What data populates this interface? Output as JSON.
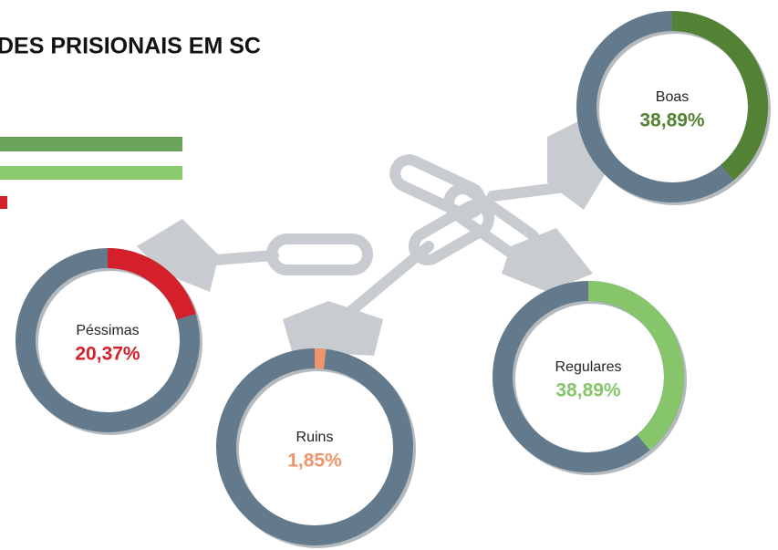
{
  "header": {
    "title": "DES PRISIONAIS EM SC"
  },
  "chart_data": [
    {
      "type": "donut",
      "categories": [
        "Péssimas"
      ],
      "values": [
        20.37
      ],
      "value_labels": [
        "20,37%"
      ],
      "color": "#d3202a"
    },
    {
      "type": "donut",
      "categories": [
        "Ruins"
      ],
      "values": [
        1.85
      ],
      "value_labels": [
        "1,85%"
      ],
      "color": "#f0956b"
    },
    {
      "type": "donut",
      "categories": [
        "Regulares"
      ],
      "values": [
        38.89
      ],
      "value_labels": [
        "38,89%"
      ],
      "color": "#86c56a"
    },
    {
      "type": "donut",
      "categories": [
        "Boas"
      ],
      "values": [
        38.89
      ],
      "value_labels": [
        "38,89%"
      ],
      "color": "#548235"
    }
  ]
}
